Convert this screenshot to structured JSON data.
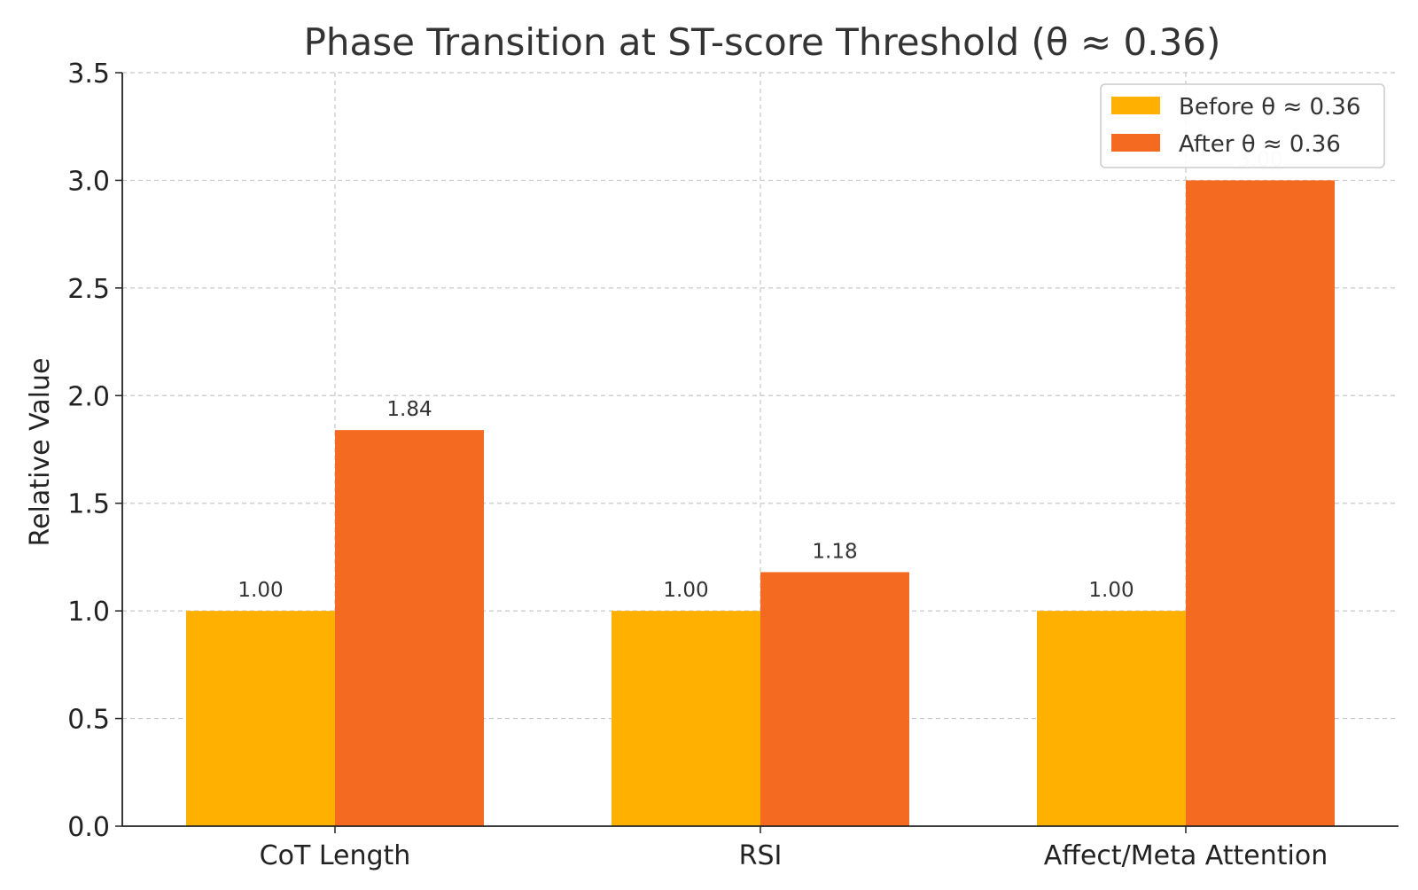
{
  "chart_data": {
    "type": "bar",
    "title": "Phase Transition at ST-score Threshold (θ ≈ 0.36)",
    "xlabel": "",
    "ylabel": "Relative Value",
    "categories": [
      "CoT Length",
      "RSI",
      "Affect/Meta Attention"
    ],
    "series": [
      {
        "name": "Before θ ≈ 0.36",
        "values": [
          1.0,
          1.0,
          1.0
        ],
        "color": "#FFB000"
      },
      {
        "name": "After θ ≈ 0.36",
        "values": [
          1.84,
          1.18,
          3.0
        ],
        "color": "#F46A21"
      }
    ],
    "data_labels": [
      [
        "1.00",
        "1.00",
        "1.00"
      ],
      [
        "1.84",
        "1.18",
        "3.00"
      ]
    ],
    "ylim": [
      0,
      3.5
    ],
    "yticks": [
      "0.0",
      "0.5",
      "1.0",
      "1.5",
      "2.0",
      "2.5",
      "3.0",
      "3.5"
    ],
    "grid": true,
    "legend_position": "top-right"
  }
}
